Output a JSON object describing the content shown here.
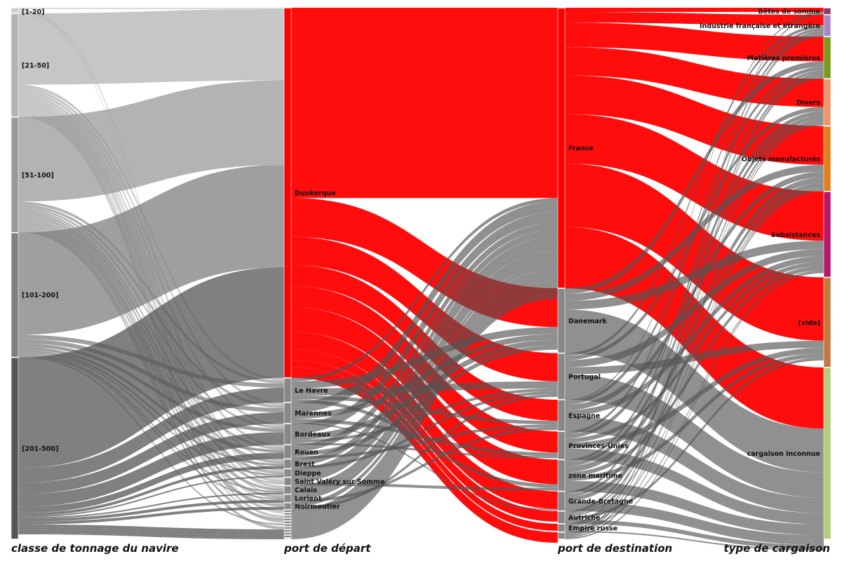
{
  "chart_data": {
    "type": "sankey",
    "axes": [
      {
        "title": "classe de tonnage du navire",
        "nodes": [
          {
            "label": "[1-20]",
            "value": 8,
            "color": "#cccccc"
          },
          {
            "label": "[21-50]",
            "value": 147,
            "color": "#b3b3b3"
          },
          {
            "label": "[51-100]",
            "value": 164,
            "color": "#999999"
          },
          {
            "label": "[101-200]",
            "value": 177,
            "color": "#7f7f7f"
          },
          {
            "label": "[201-500]",
            "value": 258,
            "color": "#555555"
          }
        ]
      },
      {
        "title": "port de départ",
        "nodes": [
          {
            "label": "Dunkerque",
            "value": 525,
            "color": "#ff0000"
          },
          {
            "label": "Le Havre",
            "value": 35,
            "color": "#888888"
          },
          {
            "label": "Marennes",
            "value": 30,
            "color": "#888888"
          },
          {
            "label": "Bordeaux",
            "value": 30,
            "color": "#888888"
          },
          {
            "label": "Rouen",
            "value": 20,
            "color": "#888888"
          },
          {
            "label": "Brest",
            "value": 14,
            "color": "#888888"
          },
          {
            "label": "Dieppe",
            "value": 12,
            "color": "#888888"
          },
          {
            "label": "Saint Valéry sur Somme",
            "value": 12,
            "color": "#888888"
          },
          {
            "label": "Calais",
            "value": 12,
            "color": "#888888"
          },
          {
            "label": "Lorient",
            "value": 12,
            "color": "#888888"
          },
          {
            "label": "Noirmoutier",
            "value": 10,
            "color": "#888888"
          },
          {
            "label": "",
            "value": 4,
            "color": "#888888"
          },
          {
            "label": "",
            "value": 4,
            "color": "#888888"
          },
          {
            "label": "",
            "value": 4,
            "color": "#888888"
          },
          {
            "label": "",
            "value": 4,
            "color": "#888888"
          },
          {
            "label": "",
            "value": 4,
            "color": "#888888"
          },
          {
            "label": "",
            "value": 4,
            "color": "#888888"
          },
          {
            "label": "",
            "value": 4,
            "color": "#888888"
          },
          {
            "label": "",
            "value": 4,
            "color": "#888888"
          },
          {
            "label": "",
            "value": 4,
            "color": "#888888"
          },
          {
            "label": "",
            "value": 4,
            "color": "#888888"
          },
          {
            "label": "",
            "value": 2,
            "color": "#888888"
          }
        ]
      },
      {
        "title": "port de destination",
        "nodes": [
          {
            "label": "France",
            "value": 398,
            "color": "#ff0000"
          },
          {
            "label": "Danemark",
            "value": 92,
            "color": "#888888"
          },
          {
            "label": "Portugal",
            "value": 66,
            "color": "#888888"
          },
          {
            "label": "Espagne",
            "value": 45,
            "color": "#888888"
          },
          {
            "label": "Provinces-Unies",
            "value": 40,
            "color": "#888888"
          },
          {
            "label": "zone maritime",
            "value": 45,
            "color": "#888888"
          },
          {
            "label": "Grande-Bretagne",
            "value": 28,
            "color": "#888888"
          },
          {
            "label": "Autriche",
            "value": 18,
            "color": "#888888"
          },
          {
            "label": "Empire russe",
            "value": 12,
            "color": "#888888"
          },
          {
            "label": "",
            "value": 10,
            "color": "#888888"
          }
        ]
      },
      {
        "title": "type de cargaison",
        "nodes": [
          {
            "label": "Bêtes de somme",
            "value": 10,
            "color": "#8e3a5c"
          },
          {
            "label": "Industrie française et étrangère",
            "value": 31,
            "color": "#a58bc6"
          },
          {
            "label": "Matières premières",
            "value": 60,
            "color": "#7a9a1a"
          },
          {
            "label": "Divers",
            "value": 67,
            "color": "#f0956b"
          },
          {
            "label": "Objets manufacturés",
            "value": 93,
            "color": "#e38017"
          },
          {
            "label": "Subsistances",
            "value": 122,
            "color": "#b5176a"
          },
          {
            "label": "[vide]",
            "value": 128,
            "color": "#c2773c"
          },
          {
            "label": "cargaison inconnue",
            "value": 244,
            "color": "#b5cc7e"
          }
        ]
      }
    ],
    "flows": [
      {
        "axis": 0,
        "from": 0,
        "to": 0,
        "value": 2
      },
      {
        "axis": 0,
        "from": 0,
        "to": 7,
        "value": 4
      },
      {
        "axis": 0,
        "from": 0,
        "to": 12,
        "value": 2
      },
      {
        "axis": 0,
        "from": 1,
        "to": 0,
        "value": 101
      },
      {
        "axis": 0,
        "from": 1,
        "to": 1,
        "value": 4
      },
      {
        "axis": 0,
        "from": 1,
        "to": 2,
        "value": 4
      },
      {
        "axis": 0,
        "from": 1,
        "to": 3,
        "value": 4
      },
      {
        "axis": 0,
        "from": 1,
        "to": 4,
        "value": 4
      },
      {
        "axis": 0,
        "from": 1,
        "to": 5,
        "value": 3
      },
      {
        "axis": 0,
        "from": 1,
        "to": 6,
        "value": 4
      },
      {
        "axis": 0,
        "from": 1,
        "to": 7,
        "value": 4
      },
      {
        "axis": 0,
        "from": 1,
        "to": 8,
        "value": 4
      },
      {
        "axis": 0,
        "from": 1,
        "to": 9,
        "value": 2
      },
      {
        "axis": 0,
        "from": 1,
        "to": 10,
        "value": 2
      },
      {
        "axis": 0,
        "from": 1,
        "to": 11,
        "value": 4
      },
      {
        "axis": 0,
        "from": 1,
        "to": 13,
        "value": 4
      },
      {
        "axis": 0,
        "from": 1,
        "to": 15,
        "value": 3
      },
      {
        "axis": 0,
        "from": 2,
        "to": 0,
        "value": 120
      },
      {
        "axis": 0,
        "from": 2,
        "to": 1,
        "value": 4
      },
      {
        "axis": 0,
        "from": 2,
        "to": 2,
        "value": 4
      },
      {
        "axis": 0,
        "from": 2,
        "to": 3,
        "value": 3
      },
      {
        "axis": 0,
        "from": 2,
        "to": 4,
        "value": 3
      },
      {
        "axis": 0,
        "from": 2,
        "to": 5,
        "value": 4
      },
      {
        "axis": 0,
        "from": 2,
        "to": 6,
        "value": 4
      },
      {
        "axis": 0,
        "from": 2,
        "to": 7,
        "value": 2
      },
      {
        "axis": 0,
        "from": 2,
        "to": 8,
        "value": 4
      },
      {
        "axis": 0,
        "from": 2,
        "to": 9,
        "value": 4
      },
      {
        "axis": 0,
        "from": 2,
        "to": 10,
        "value": 4
      },
      {
        "axis": 0,
        "from": 2,
        "to": 14,
        "value": 4
      },
      {
        "axis": 0,
        "from": 2,
        "to": 17,
        "value": 4
      },
      {
        "axis": 0,
        "from": 3,
        "to": 0,
        "value": 145
      },
      {
        "axis": 0,
        "from": 3,
        "to": 1,
        "value": 6
      },
      {
        "axis": 0,
        "from": 3,
        "to": 2,
        "value": 6
      },
      {
        "axis": 0,
        "from": 3,
        "to": 3,
        "value": 5
      },
      {
        "axis": 0,
        "from": 3,
        "to": 4,
        "value": 4
      },
      {
        "axis": 0,
        "from": 3,
        "to": 5,
        "value": 3
      },
      {
        "axis": 0,
        "from": 3,
        "to": 6,
        "value": 2
      },
      {
        "axis": 0,
        "from": 3,
        "to": 8,
        "value": 2
      },
      {
        "axis": 0,
        "from": 3,
        "to": 9,
        "value": 2
      },
      {
        "axis": 0,
        "from": 3,
        "to": 16,
        "value": 2
      },
      {
        "axis": 0,
        "from": 4,
        "to": 0,
        "value": 157
      },
      {
        "axis": 0,
        "from": 4,
        "to": 1,
        "value": 21
      },
      {
        "axis": 0,
        "from": 4,
        "to": 2,
        "value": 16
      },
      {
        "axis": 0,
        "from": 4,
        "to": 3,
        "value": 18
      },
      {
        "axis": 0,
        "from": 4,
        "to": 4,
        "value": 9
      },
      {
        "axis": 0,
        "from": 4,
        "to": 5,
        "value": 4
      },
      {
        "axis": 0,
        "from": 4,
        "to": 6,
        "value": 2
      },
      {
        "axis": 0,
        "from": 4,
        "to": 8,
        "value": 2
      },
      {
        "axis": 0,
        "from": 4,
        "to": 9,
        "value": 4
      },
      {
        "axis": 0,
        "from": 4,
        "to": 10,
        "value": 4
      },
      {
        "axis": 0,
        "from": 4,
        "to": 18,
        "value": 4
      },
      {
        "axis": 0,
        "from": 4,
        "to": 19,
        "value": 4
      },
      {
        "axis": 0,
        "from": 4,
        "to": 20,
        "value": 4
      },
      {
        "axis": 0,
        "from": 4,
        "to": 21,
        "value": 2
      },
      {
        "axis": 1,
        "from": 0,
        "to": 0,
        "value": 270
      },
      {
        "axis": 1,
        "from": 0,
        "to": 1,
        "value": 55
      },
      {
        "axis": 1,
        "from": 0,
        "to": 2,
        "value": 40
      },
      {
        "axis": 1,
        "from": 0,
        "to": 3,
        "value": 30
      },
      {
        "axis": 1,
        "from": 0,
        "to": 4,
        "value": 30
      },
      {
        "axis": 1,
        "from": 0,
        "to": 5,
        "value": 35
      },
      {
        "axis": 1,
        "from": 0,
        "to": 6,
        "value": 25
      },
      {
        "axis": 1,
        "from": 0,
        "to": 7,
        "value": 15
      },
      {
        "axis": 1,
        "from": 0,
        "to": 8,
        "value": 10
      },
      {
        "axis": 1,
        "from": 0,
        "to": 9,
        "value": 15
      },
      {
        "axis": 1,
        "from": 1,
        "to": 0,
        "value": 5
      },
      {
        "axis": 1,
        "from": 1,
        "to": 1,
        "value": 10
      },
      {
        "axis": 1,
        "from": 1,
        "to": 2,
        "value": 10
      },
      {
        "axis": 1,
        "from": 1,
        "to": 3,
        "value": 5
      },
      {
        "axis": 1,
        "from": 1,
        "to": 5,
        "value": 5
      },
      {
        "axis": 1,
        "from": 2,
        "to": 0,
        "value": 15
      },
      {
        "axis": 1,
        "from": 2,
        "to": 1,
        "value": 8
      },
      {
        "axis": 1,
        "from": 2,
        "to": 4,
        "value": 5
      },
      {
        "axis": 1,
        "from": 2,
        "to": 6,
        "value": 2
      },
      {
        "axis": 1,
        "from": 3,
        "to": 0,
        "value": 15
      },
      {
        "axis": 1,
        "from": 3,
        "to": 1,
        "value": 8
      },
      {
        "axis": 1,
        "from": 3,
        "to": 2,
        "value": 4
      },
      {
        "axis": 1,
        "from": 3,
        "to": 4,
        "value": 3
      },
      {
        "axis": 1,
        "from": 4,
        "to": 0,
        "value": 10
      },
      {
        "axis": 1,
        "from": 4,
        "to": 1,
        "value": 6
      },
      {
        "axis": 1,
        "from": 4,
        "to": 3,
        "value": 4
      },
      {
        "axis": 1,
        "from": 5,
        "to": 0,
        "value": 10
      },
      {
        "axis": 1,
        "from": 5,
        "to": 2,
        "value": 4
      },
      {
        "axis": 1,
        "from": 6,
        "to": 0,
        "value": 12
      },
      {
        "axis": 1,
        "from": 7,
        "to": 0,
        "value": 8
      },
      {
        "axis": 1,
        "from": 7,
        "to": 5,
        "value": 4
      },
      {
        "axis": 1,
        "from": 8,
        "to": 0,
        "value": 12
      },
      {
        "axis": 1,
        "from": 9,
        "to": 0,
        "value": 8
      },
      {
        "axis": 1,
        "from": 9,
        "to": 3,
        "value": 4
      },
      {
        "axis": 1,
        "from": 10,
        "to": 0,
        "value": 6
      },
      {
        "axis": 1,
        "from": 10,
        "to": 2,
        "value": 4
      },
      {
        "axis": 1,
        "from": 11,
        "to": 0,
        "value": 4
      },
      {
        "axis": 1,
        "from": 12,
        "to": 0,
        "value": 4
      },
      {
        "axis": 1,
        "from": 13,
        "to": 0,
        "value": 4
      },
      {
        "axis": 1,
        "from": 14,
        "to": 0,
        "value": 4
      },
      {
        "axis": 1,
        "from": 15,
        "to": 0,
        "value": 4
      },
      {
        "axis": 1,
        "from": 16,
        "to": 0,
        "value": 4
      },
      {
        "axis": 1,
        "from": 17,
        "to": 0,
        "value": 4
      },
      {
        "axis": 1,
        "from": 18,
        "to": 0,
        "value": 4
      },
      {
        "axis": 1,
        "from": 19,
        "to": 0,
        "value": 4
      },
      {
        "axis": 1,
        "from": 20,
        "to": 0,
        "value": 4
      },
      {
        "axis": 1,
        "from": 21,
        "to": 0,
        "value": 2
      },
      {
        "axis": 2,
        "from": 0,
        "to": 0,
        "value": 6
      },
      {
        "axis": 2,
        "from": 0,
        "to": 1,
        "value": 15
      },
      {
        "axis": 2,
        "from": 0,
        "to": 2,
        "value": 35
      },
      {
        "axis": 2,
        "from": 0,
        "to": 3,
        "value": 40
      },
      {
        "axis": 2,
        "from": 0,
        "to": 4,
        "value": 55
      },
      {
        "axis": 2,
        "from": 0,
        "to": 5,
        "value": 70
      },
      {
        "axis": 2,
        "from": 0,
        "to": 6,
        "value": 90
      },
      {
        "axis": 2,
        "from": 0,
        "to": 7,
        "value": 87
      },
      {
        "axis": 2,
        "from": 1,
        "to": 2,
        "value": 8
      },
      {
        "axis": 2,
        "from": 1,
        "to": 4,
        "value": 10
      },
      {
        "axis": 2,
        "from": 1,
        "to": 5,
        "value": 12
      },
      {
        "axis": 2,
        "from": 1,
        "to": 7,
        "value": 62
      },
      {
        "axis": 2,
        "from": 2,
        "to": 1,
        "value": 4
      },
      {
        "axis": 2,
        "from": 2,
        "to": 3,
        "value": 6
      },
      {
        "axis": 2,
        "from": 2,
        "to": 5,
        "value": 10
      },
      {
        "axis": 2,
        "from": 2,
        "to": 6,
        "value": 10
      },
      {
        "axis": 2,
        "from": 2,
        "to": 7,
        "value": 36
      },
      {
        "axis": 2,
        "from": 3,
        "to": 0,
        "value": 2
      },
      {
        "axis": 2,
        "from": 3,
        "to": 2,
        "value": 5
      },
      {
        "axis": 2,
        "from": 3,
        "to": 4,
        "value": 8
      },
      {
        "axis": 2,
        "from": 3,
        "to": 5,
        "value": 8
      },
      {
        "axis": 2,
        "from": 3,
        "to": 7,
        "value": 22
      },
      {
        "axis": 2,
        "from": 4,
        "to": 1,
        "value": 4
      },
      {
        "axis": 2,
        "from": 4,
        "to": 3,
        "value": 6
      },
      {
        "axis": 2,
        "from": 4,
        "to": 5,
        "value": 6
      },
      {
        "axis": 2,
        "from": 4,
        "to": 6,
        "value": 8
      },
      {
        "axis": 2,
        "from": 4,
        "to": 7,
        "value": 16
      },
      {
        "axis": 2,
        "from": 5,
        "to": 2,
        "value": 4
      },
      {
        "axis": 2,
        "from": 5,
        "to": 3,
        "value": 6
      },
      {
        "axis": 2,
        "from": 5,
        "to": 4,
        "value": 8
      },
      {
        "axis": 2,
        "from": 5,
        "to": 5,
        "value": 6
      },
      {
        "axis": 2,
        "from": 5,
        "to": 6,
        "value": 6
      },
      {
        "axis": 2,
        "from": 5,
        "to": 7,
        "value": 15
      },
      {
        "axis": 2,
        "from": 6,
        "to": 1,
        "value": 4
      },
      {
        "axis": 2,
        "from": 6,
        "to": 3,
        "value": 4
      },
      {
        "axis": 2,
        "from": 6,
        "to": 4,
        "value": 6
      },
      {
        "axis": 2,
        "from": 6,
        "to": 7,
        "value": 14
      },
      {
        "axis": 2,
        "from": 7,
        "to": 2,
        "value": 4
      },
      {
        "axis": 2,
        "from": 7,
        "to": 3,
        "value": 2
      },
      {
        "axis": 2,
        "from": 7,
        "to": 4,
        "value": 2
      },
      {
        "axis": 2,
        "from": 7,
        "to": 6,
        "value": 4
      },
      {
        "axis": 2,
        "from": 7,
        "to": 7,
        "value": 6
      },
      {
        "axis": 2,
        "from": 8,
        "to": 0,
        "value": 2
      },
      {
        "axis": 2,
        "from": 8,
        "to": 1,
        "value": 2
      },
      {
        "axis": 2,
        "from": 8,
        "to": 2,
        "value": 2
      },
      {
        "axis": 2,
        "from": 8,
        "to": 4,
        "value": 2
      },
      {
        "axis": 2,
        "from": 8,
        "to": 5,
        "value": 2
      },
      {
        "axis": 2,
        "from": 8,
        "to": 7,
        "value": 2
      },
      {
        "axis": 2,
        "from": 9,
        "to": 1,
        "value": 2
      },
      {
        "axis": 2,
        "from": 9,
        "to": 2,
        "value": 2
      },
      {
        "axis": 2,
        "from": 9,
        "to": 3,
        "value": 2
      },
      {
        "axis": 2,
        "from": 9,
        "to": 4,
        "value": 2
      },
      {
        "axis": 2,
        "from": 9,
        "to": 5,
        "value": 2
      }
    ]
  }
}
